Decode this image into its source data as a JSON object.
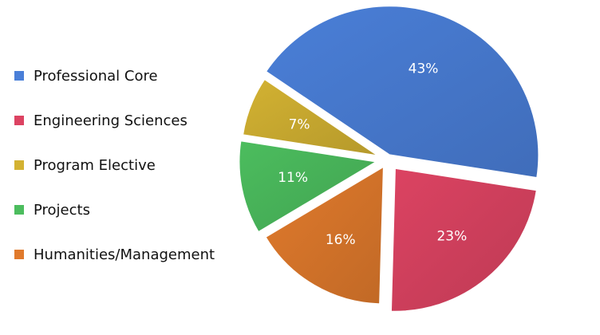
{
  "chart_data": {
    "type": "pie",
    "title": "",
    "legend_position": "left",
    "slices": [
      {
        "label": "Professional Core",
        "value": 43,
        "value_label": "43%",
        "color": "#4a7fd8"
      },
      {
        "label": "Engineering Sciences",
        "value": 23,
        "value_label": "23%",
        "color": "#dc4362"
      },
      {
        "label": "Humanities/Management",
        "value": 16,
        "value_label": "16%",
        "color": "#e07a2c"
      },
      {
        "label": "Projects",
        "value": 11,
        "value_label": "11%",
        "color": "#4cbd5e"
      },
      {
        "label": "Program Elective",
        "value": 7,
        "value_label": "7%",
        "color": "#d3b232"
      }
    ],
    "legend_order": [
      "Professional Core",
      "Engineering Sciences",
      "Program Elective",
      "Projects",
      "Humanities/Management"
    ]
  }
}
